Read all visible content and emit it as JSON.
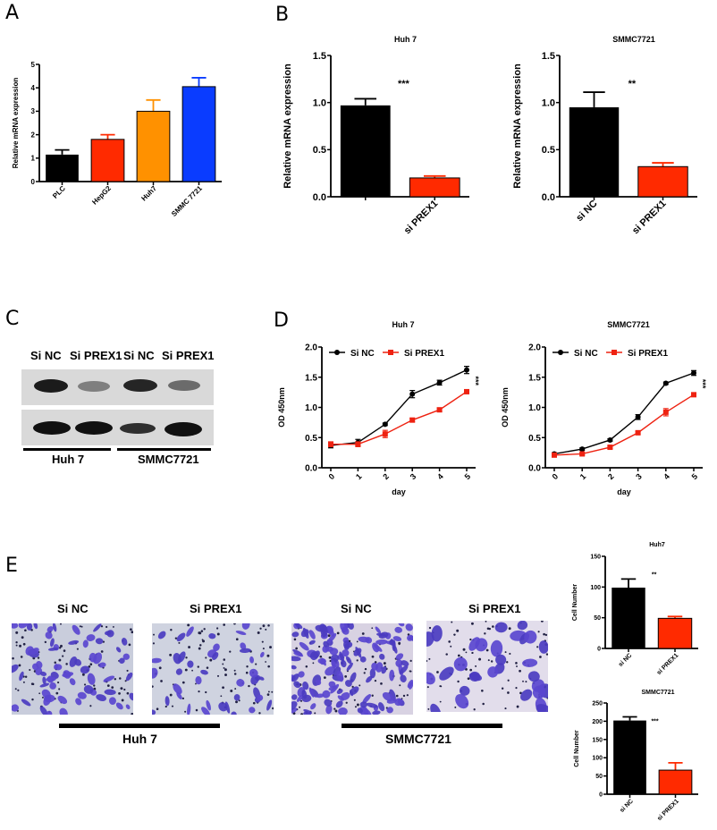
{
  "panels": {
    "A": {
      "letter": "A"
    },
    "B": {
      "letter": "B"
    },
    "C": {
      "letter": "C"
    },
    "D": {
      "letter": "D"
    },
    "E": {
      "letter": "E"
    }
  },
  "colors": {
    "black": "#000000",
    "red": "#ff2a00",
    "orange": "#ff9100",
    "blue": "#0a3cff",
    "line_red": "#ee2211"
  },
  "blot": {
    "lane_labels": [
      "Si NC",
      "Si PREX1",
      "Si NC",
      "Si PREX1"
    ],
    "groups": [
      "Huh 7",
      "SMMC7721"
    ],
    "top_band_intensity": [
      0.95,
      0.45,
      0.9,
      0.55
    ],
    "bottom_band_intensity": [
      1.0,
      1.0,
      0.85,
      1.0
    ]
  },
  "micrographs": {
    "labels": [
      "Si NC",
      "Si PREX1",
      "Si NC",
      "Si PREX1"
    ],
    "groups": [
      "Huh 7",
      "SMMC7721"
    ]
  },
  "chart_data": [
    {
      "id": "A",
      "type": "bar",
      "title": "",
      "categories": [
        "PLC",
        "HepG2",
        "Huh7",
        "SMMC 7721"
      ],
      "values": [
        1.15,
        1.8,
        3.0,
        4.05
      ],
      "errors": [
        0.2,
        0.2,
        0.48,
        0.38
      ],
      "bar_colors": [
        "#000000",
        "#ff2a00",
        "#ff9100",
        "#0a3cff"
      ],
      "xlabel": "",
      "ylabel": "Relative  mRNA expression",
      "ylim": [
        0,
        5
      ],
      "yticks": [
        0,
        1,
        2,
        3,
        4,
        5
      ],
      "grid": false
    },
    {
      "id": "B1",
      "type": "bar",
      "title": "Huh 7",
      "categories": [
        "",
        "si PREX1"
      ],
      "values": [
        0.97,
        0.2
      ],
      "errors": [
        0.07,
        0.02
      ],
      "bar_colors": [
        "#000000",
        "#ff2a00"
      ],
      "significance": "***",
      "xlabel": "",
      "ylabel": "Relative  mRNA expression",
      "ylim": [
        0,
        1.5
      ],
      "yticks": [
        "0.0",
        "0.5",
        "1.0",
        "1.5"
      ],
      "grid": false
    },
    {
      "id": "B2",
      "type": "bar",
      "title": "SMMC7721",
      "categories": [
        "si NC",
        "si PREX1"
      ],
      "values": [
        0.95,
        0.32
      ],
      "errors": [
        0.16,
        0.04
      ],
      "bar_colors": [
        "#000000",
        "#ff2a00"
      ],
      "significance": "**",
      "xlabel": "",
      "ylabel": "Relative  mRNA expression",
      "ylim": [
        0,
        1.5
      ],
      "yticks": [
        "0.0",
        "0.5",
        "1.0",
        "1.5"
      ],
      "grid": false
    },
    {
      "id": "D1",
      "type": "line",
      "title": "Huh 7",
      "x": [
        0,
        1,
        2,
        3,
        4,
        5
      ],
      "series": [
        {
          "name": "Si NC",
          "values": [
            0.37,
            0.42,
            0.72,
            1.22,
            1.41,
            1.62
          ],
          "errors": [
            0.04,
            0.05,
            0.02,
            0.06,
            0.04,
            0.06
          ],
          "color": "#000000",
          "marker": "circle"
        },
        {
          "name": "Si PREX1",
          "values": [
            0.39,
            0.39,
            0.56,
            0.79,
            0.96,
            1.26
          ],
          "errors": [
            0.04,
            0.04,
            0.06,
            0.03,
            0.03,
            0.02
          ],
          "color": "#ee2211",
          "marker": "square"
        }
      ],
      "significance": "***",
      "xlabel": "day",
      "ylabel": "OD 450nm",
      "ylim": [
        0,
        2.0
      ],
      "yticks": [
        "0.0",
        "0.5",
        "1.0",
        "1.5",
        "2.0"
      ],
      "xticks": [
        "0",
        "1",
        "2",
        "3",
        "4",
        "5"
      ],
      "legend": "top",
      "grid": false
    },
    {
      "id": "D2",
      "type": "line",
      "title": "SMMC7721",
      "x": [
        0,
        1,
        2,
        3,
        4,
        5
      ],
      "series": [
        {
          "name": "Si NC",
          "values": [
            0.23,
            0.31,
            0.46,
            0.84,
            1.4,
            1.57
          ],
          "errors": [
            0.02,
            0.02,
            0.02,
            0.04,
            0.02,
            0.04
          ],
          "color": "#000000",
          "marker": "circle"
        },
        {
          "name": "Si PREX1",
          "values": [
            0.21,
            0.23,
            0.34,
            0.58,
            0.92,
            1.21
          ],
          "errors": [
            0.02,
            0.02,
            0.02,
            0.02,
            0.06,
            0.02
          ],
          "color": "#ee2211",
          "marker": "square"
        }
      ],
      "significance": "***",
      "xlabel": "day",
      "ylabel": "OD 450nm",
      "ylim": [
        0,
        2.0
      ],
      "yticks": [
        "0.0",
        "0.5",
        "1.0",
        "1.5",
        "2.0"
      ],
      "xticks": [
        "0",
        "1",
        "2",
        "3",
        "4",
        "5"
      ],
      "legend": "top",
      "grid": false
    },
    {
      "id": "E1",
      "type": "bar",
      "title": "Huh7",
      "categories": [
        "si NC",
        "si PREX1"
      ],
      "values": [
        99,
        49
      ],
      "errors": [
        14,
        3
      ],
      "bar_colors": [
        "#000000",
        "#ff2a00"
      ],
      "significance": "**",
      "xlabel": "",
      "ylabel": "Cell Number",
      "ylim": [
        0,
        150
      ],
      "yticks": [
        "0",
        "50",
        "100",
        "150"
      ],
      "grid": false
    },
    {
      "id": "E2",
      "type": "bar",
      "title": "SMMC7721",
      "categories": [
        "si NC",
        "si PREX1"
      ],
      "values": [
        202,
        66
      ],
      "errors": [
        10,
        20
      ],
      "bar_colors": [
        "#000000",
        "#ff2a00"
      ],
      "significance": "***",
      "xlabel": "",
      "ylabel": "Cell Number",
      "ylim": [
        0,
        250
      ],
      "yticks": [
        "0",
        "50",
        "100",
        "150",
        "200",
        "250"
      ],
      "grid": false
    }
  ]
}
